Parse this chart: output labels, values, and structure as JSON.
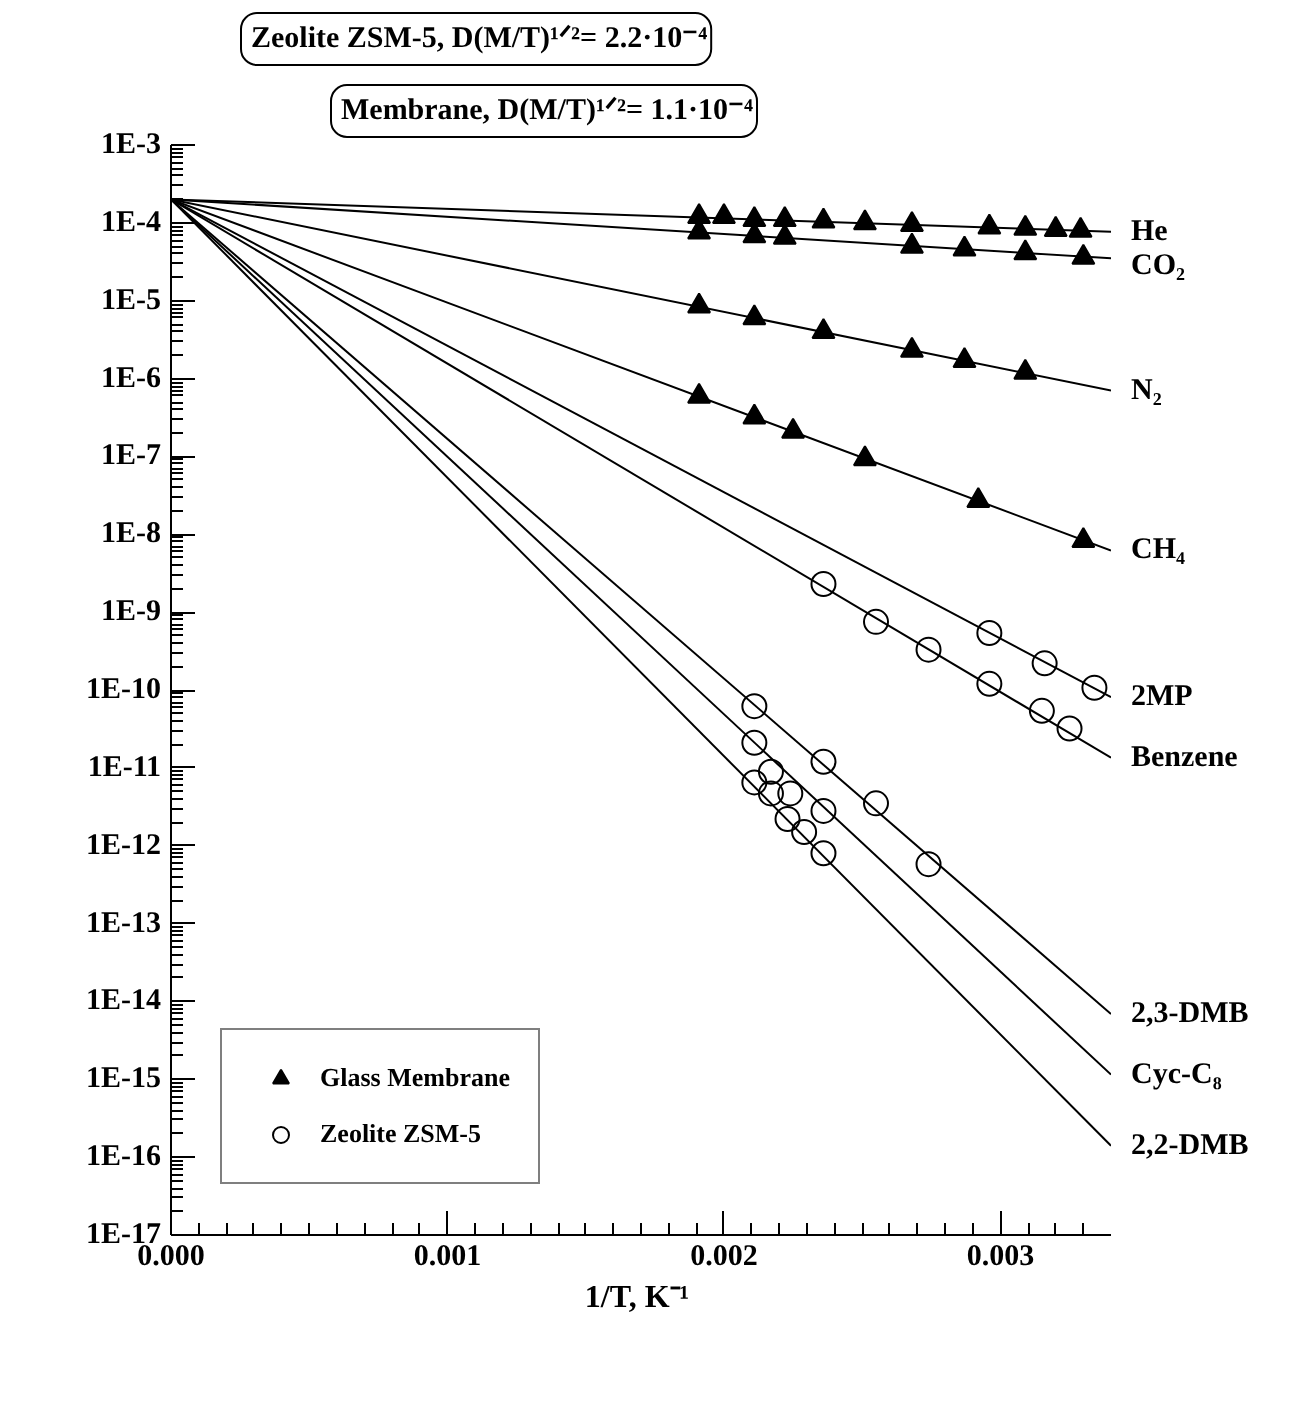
{
  "chart_data": {
    "type": "line",
    "xlabel": "1/T,  K⁻¹",
    "xlim": [
      0,
      0.0034
    ],
    "xticks": [
      {
        "value": 0,
        "label": "0.000"
      },
      {
        "value": 0.001,
        "label": "0.001"
      },
      {
        "value": 0.002,
        "label": "0.002"
      },
      {
        "value": 0.003,
        "label": "0.003"
      }
    ],
    "ylim": [
      1e-17,
      0.001
    ],
    "yticks": [
      {
        "value": 1e-17,
        "label": "1E-17"
      },
      {
        "value": 1e-16,
        "label": "1E-16"
      },
      {
        "value": 1e-15,
        "label": "1E-15"
      },
      {
        "value": 1e-14,
        "label": "1E-14"
      },
      {
        "value": 1e-13,
        "label": "1E-13"
      },
      {
        "value": 1e-12,
        "label": "1E-12"
      },
      {
        "value": 1e-11,
        "label": "1E-11"
      },
      {
        "value": 1e-10,
        "label": "1E-10"
      },
      {
        "value": 1e-09,
        "label": "1E-9"
      },
      {
        "value": 1e-08,
        "label": "1E-8"
      },
      {
        "value": 1e-07,
        "label": "1E-7"
      },
      {
        "value": 1e-06,
        "label": "1E-6"
      },
      {
        "value": 1e-05,
        "label": "1E-5"
      },
      {
        "value": 0.0001,
        "label": "1E-4"
      },
      {
        "value": 0.001,
        "label": "1E-3"
      }
    ],
    "log": "y",
    "grid": false,
    "legend": "bottom left",
    "annotations": [
      "Zeolite ZSM-5, D(M/T)¹ᐟ²= 2.2·10⁻⁴",
      "Membrane, D(M/T)¹ᐟ²= 1.1·10⁻⁴"
    ],
    "series": [
      {
        "name": "He",
        "color": "#000000",
        "x": [
          0,
          0.0034
        ],
        "values": [
          0.0002,
          7.7e-05
        ]
      },
      {
        "name": "CO₂",
        "color": "#000000",
        "x": [
          0,
          0.0034
        ],
        "values": [
          0.0002,
          3.5e-05
        ]
      },
      {
        "name": "N₂",
        "color": "#000000",
        "x": [
          0,
          0.0034
        ],
        "values": [
          0.0002,
          7e-07
        ]
      },
      {
        "name": "CH₄",
        "color": "#000000",
        "x": [
          0,
          0.0034
        ],
        "values": [
          0.0002,
          6.2e-09
        ]
      },
      {
        "name": "2MP",
        "color": "#000000",
        "x": [
          0,
          0.0034
        ],
        "values": [
          0.0002,
          8.1e-11
        ]
      },
      {
        "name": "Benzene",
        "color": "#000000",
        "x": [
          0,
          0.0034
        ],
        "values": [
          0.0002,
          1.35e-11
        ]
      },
      {
        "name": "2,3-DMB",
        "color": "#000000",
        "x": [
          0,
          0.0034
        ],
        "values": [
          0.0002,
          6.9e-15
        ]
      },
      {
        "name": "Cyc-C₈",
        "color": "#000000",
        "x": [
          0,
          0.0034
        ],
        "values": [
          0.0002,
          1.15e-15
        ]
      },
      {
        "name": "2,2-DMB",
        "color": "#000000",
        "x": [
          0,
          0.0034
        ],
        "values": [
          0.0002,
          1.4e-16
        ]
      },
      {
        "type": "scatter",
        "name": "Glass Membrane",
        "color": "#000000",
        "marker": "triangle",
        "x": [
          0.00191,
          0.002,
          0.00211,
          0.00222,
          0.00236,
          0.00251,
          0.00268,
          0.00296,
          0.00309,
          0.0032,
          0.00329,
          0.00191,
          0.00211,
          0.00222,
          0.00268,
          0.00287,
          0.00309,
          0.0033,
          0.00191,
          0.00211,
          0.00236,
          0.00268,
          0.00287,
          0.00309,
          0.00191,
          0.00211,
          0.00225,
          0.00251,
          0.00292,
          0.0033
        ],
        "values": [
          0.00012,
          0.00012,
          0.00011,
          0.00011,
          0.000105,
          0.0001,
          9.5e-05,
          8.8e-05,
          8.5e-05,
          8.2e-05,
          8e-05,
          7.6e-05,
          6.8e-05,
          6.5e-05,
          5e-05,
          4.6e-05,
          4.1e-05,
          3.6e-05,
          8.5e-06,
          6e-06,
          4e-06,
          2.3e-06,
          1.7e-06,
          1.2e-06,
          5.9e-07,
          3.2e-07,
          2.1e-07,
          9.3e-08,
          2.7e-08,
          8.3e-09
        ]
      },
      {
        "type": "scatter",
        "name": "Zeolite ZSM-5",
        "color": "#000000",
        "marker": "circle",
        "x": [
          0.00296,
          0.00316,
          0.00334,
          0.00236,
          0.00255,
          0.00274,
          0.00296,
          0.00315,
          0.00325,
          0.00211,
          0.00236,
          0.00255,
          0.00274,
          0.00211,
          0.00217,
          0.00224,
          0.00236,
          0.00211,
          0.00217,
          0.00223,
          0.00229,
          0.00236
        ],
        "values": [
          5.4e-10,
          2.2e-10,
          1.07e-10,
          2.3e-09,
          7.5e-10,
          3.3e-10,
          1.2e-10,
          5.4e-11,
          3.2e-11,
          6.2e-11,
          1.2e-11,
          3.5e-12,
          5.8e-13,
          2.1e-11,
          8.9e-12,
          4.7e-12,
          2.8e-12,
          6.5e-12,
          4.7e-12,
          2.2e-12,
          1.5e-12,
          8e-13
        ]
      }
    ]
  }
}
